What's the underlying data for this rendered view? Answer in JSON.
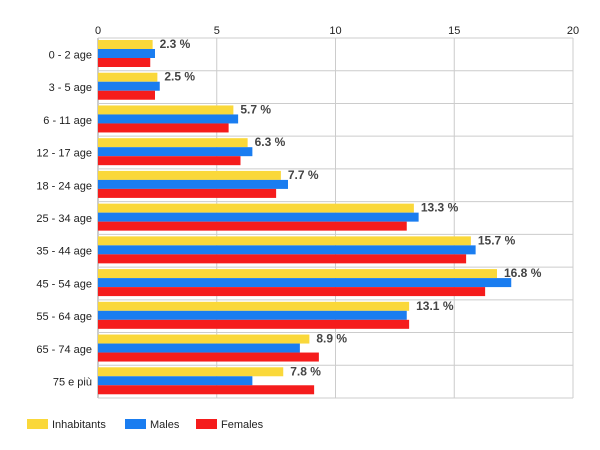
{
  "chart_data": {
    "type": "bar",
    "orientation": "horizontal",
    "categories": [
      "0 - 2 age",
      "3 - 5 age",
      "6 - 11 age",
      "12 - 17 age",
      "18 - 24 age",
      "25 - 34 age",
      "35 - 44 age",
      "45 - 54 age",
      "55 - 64 age",
      "65 - 74 age",
      "75 e più"
    ],
    "series": [
      {
        "name": "Inhabitants",
        "color": "#fad83a",
        "values": [
          2.3,
          2.5,
          5.7,
          6.3,
          7.7,
          13.3,
          15.7,
          16.8,
          13.1,
          8.9,
          7.8
        ]
      },
      {
        "name": "Males",
        "color": "#1a7df0",
        "values": [
          2.4,
          2.6,
          5.9,
          6.5,
          8.0,
          13.5,
          15.9,
          17.4,
          13.0,
          8.5,
          6.5
        ]
      },
      {
        "name": "Females",
        "color": "#f51c1c",
        "values": [
          2.2,
          2.4,
          5.5,
          6.0,
          7.5,
          13.0,
          15.5,
          16.3,
          13.1,
          9.3,
          9.1
        ]
      }
    ],
    "data_labels": [
      "2.3 %",
      "2.5 %",
      "5.7 %",
      "6.3 %",
      "7.7 %",
      "13.3 %",
      "15.7 %",
      "16.8 %",
      "13.1 %",
      "8.9 %",
      "7.8 %"
    ],
    "xlim": [
      0,
      20
    ],
    "ticks": [
      "0",
      "5",
      "10",
      "15",
      "20"
    ],
    "tick_values": [
      0,
      5,
      10,
      15,
      20
    ],
    "grid": true,
    "legend_position": "bottom-left"
  }
}
